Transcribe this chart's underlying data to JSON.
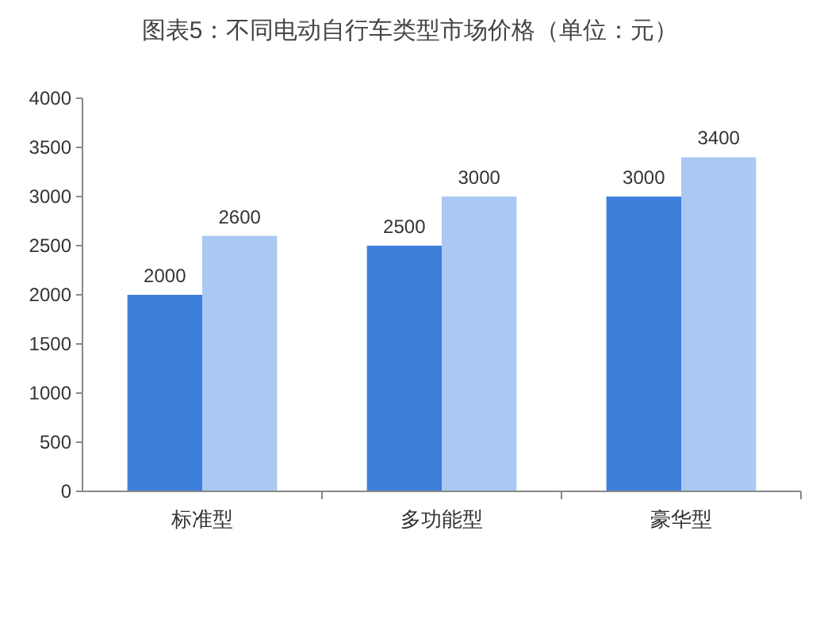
{
  "chart_data": {
    "type": "bar",
    "title": "图表5：不同电动自行车类型市场价格（单位：元）",
    "categories": [
      "标准型",
      "多功能型",
      "豪华型"
    ],
    "series": [
      {
        "color": "#3f7fdc",
        "values": [
          2000,
          2500,
          3000
        ]
      },
      {
        "color": "#a9c9f2",
        "values": [
          2600,
          3000,
          3400
        ]
      }
    ],
    "ylim": [
      0,
      4000
    ],
    "yticks": [
      0,
      500,
      1000,
      1500,
      2000,
      2500,
      3000,
      3500,
      4000
    ],
    "grid": false,
    "data_labels": true
  }
}
